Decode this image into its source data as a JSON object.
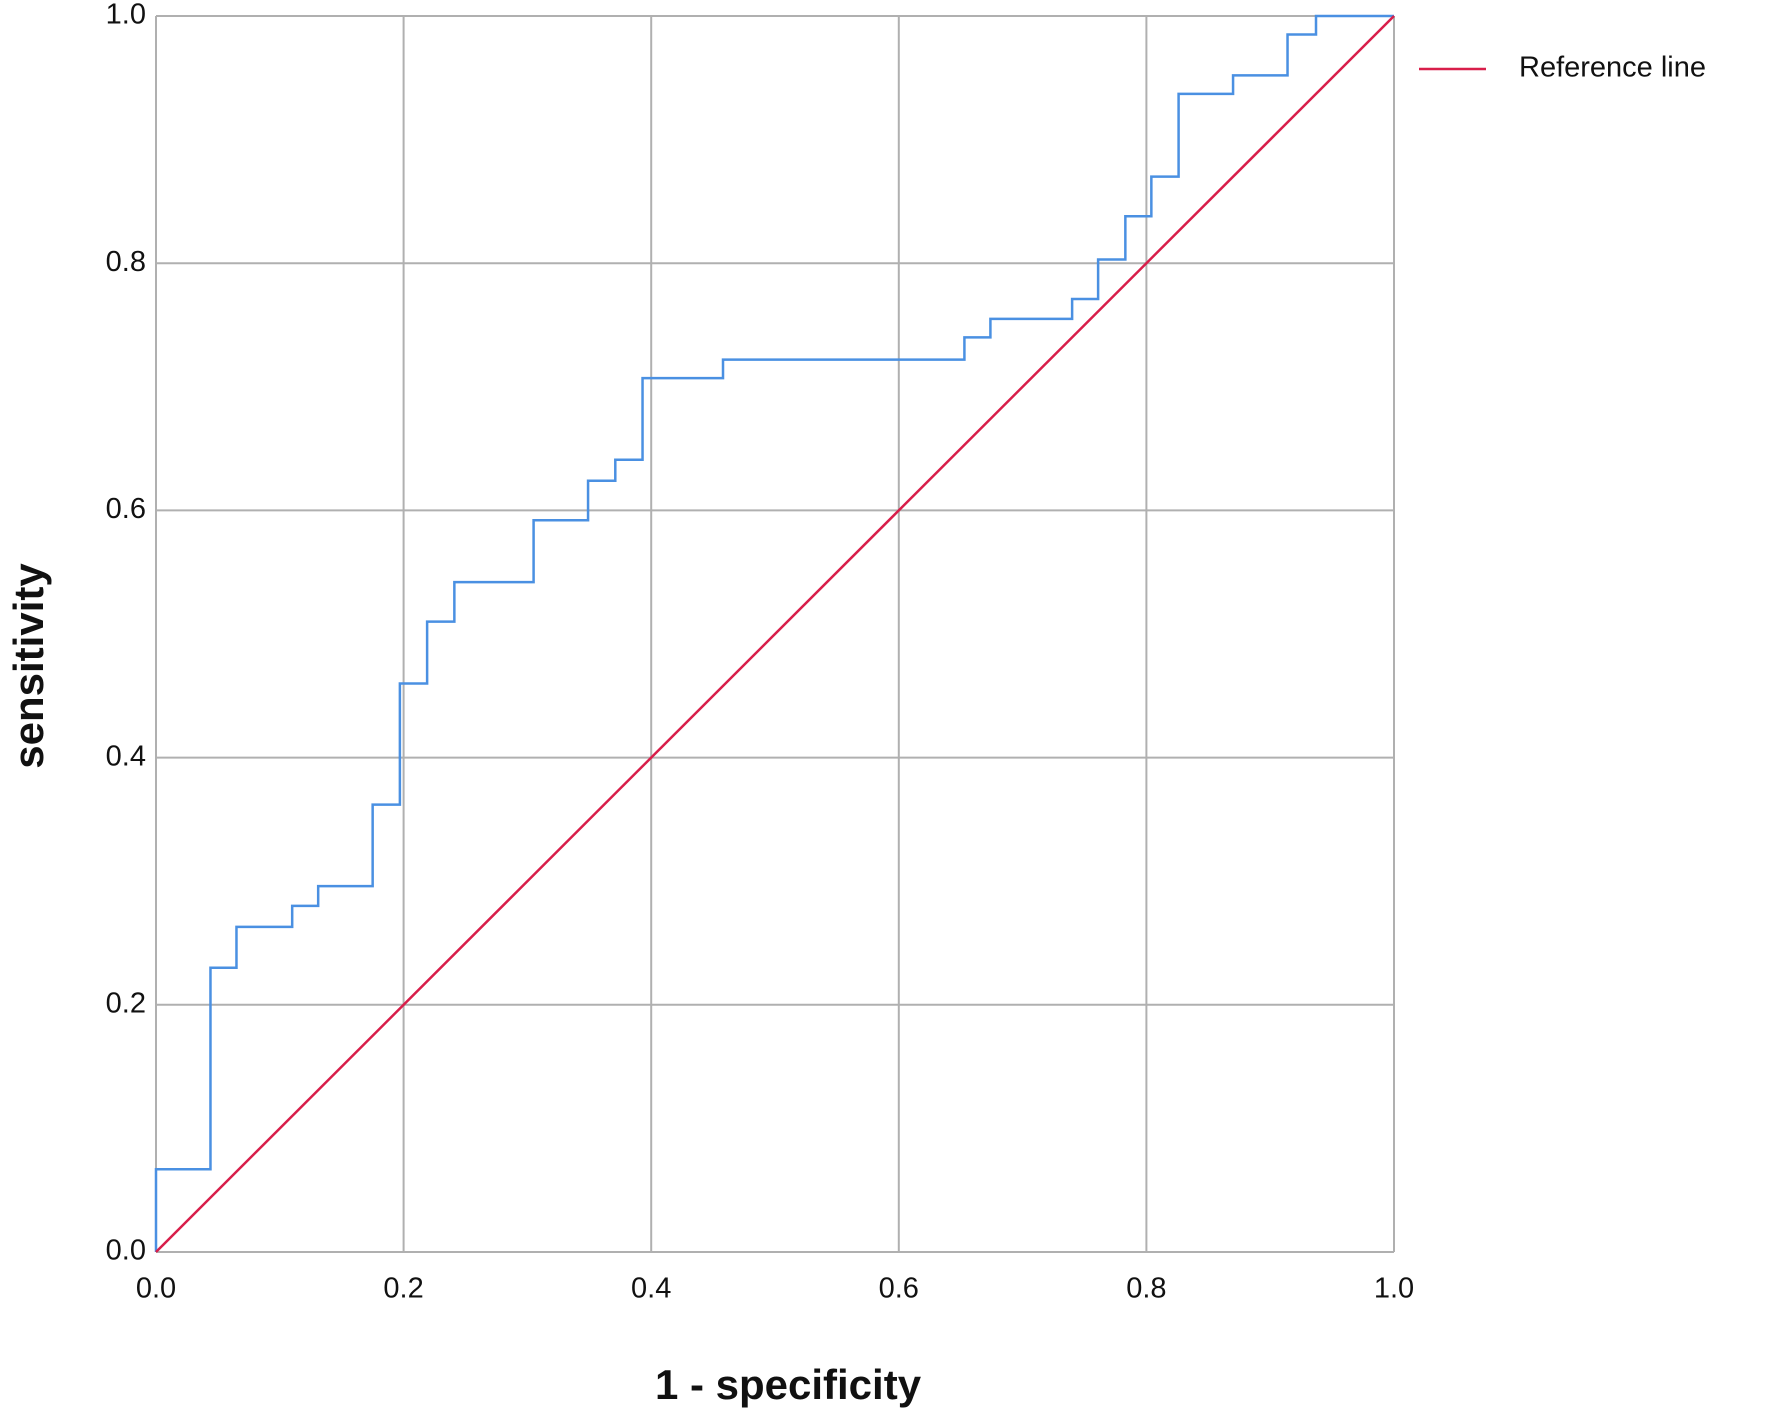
{
  "chart_data": {
    "type": "line",
    "x_label": "1 - specificity",
    "y_label": "sensitivity",
    "xlim": [
      0,
      1
    ],
    "ylim": [
      0,
      1
    ],
    "xticks": [
      {
        "value": 0,
        "label": "0.0"
      },
      0.2,
      0.4,
      0.6,
      0.8,
      {
        "value": 1,
        "label": "1.0"
      }
    ],
    "yticks": [
      {
        "value": 0,
        "label": "0.0"
      },
      0.2,
      0.4,
      0.6,
      0.8,
      {
        "value": 1,
        "label": "1.0"
      }
    ],
    "grid": true,
    "legend": "top-right",
    "series": [
      {
        "color": "#4a90e2",
        "x": [
          0,
          0,
          0.044,
          0.044,
          0.065,
          0.065,
          0.11,
          0.11,
          0.131,
          0.131,
          0.175,
          0.175,
          0.197,
          0.197,
          0.219,
          0.219,
          0.241,
          0.241,
          0.305,
          0.305,
          0.349,
          0.349,
          0.371,
          0.371,
          0.393,
          0.393,
          0.458,
          0.458,
          0.653,
          0.653,
          0.674,
          0.674,
          0.74,
          0.74,
          0.761,
          0.761,
          0.783,
          0.783,
          0.804,
          0.804,
          0.826,
          0.826,
          0.87,
          0.87,
          0.914,
          0.914,
          0.937,
          0.937,
          1
        ],
        "values": [
          0,
          0.067,
          0.067,
          0.23,
          0.23,
          0.263,
          0.263,
          0.28,
          0.28,
          0.296,
          0.296,
          0.362,
          0.362,
          0.46,
          0.46,
          0.51,
          0.51,
          0.542,
          0.542,
          0.592,
          0.592,
          0.624,
          0.624,
          0.641,
          0.641,
          0.707,
          0.707,
          0.722,
          0.722,
          0.74,
          0.74,
          0.755,
          0.755,
          0.771,
          0.771,
          0.803,
          0.803,
          0.838,
          0.838,
          0.87,
          0.87,
          0.937,
          0.937,
          0.952,
          0.952,
          0.985,
          0.985,
          1,
          1
        ]
      },
      {
        "name": "Reference line",
        "color": "#d81e4a",
        "x": [
          0,
          1
        ],
        "values": [
          0,
          1
        ]
      }
    ]
  }
}
